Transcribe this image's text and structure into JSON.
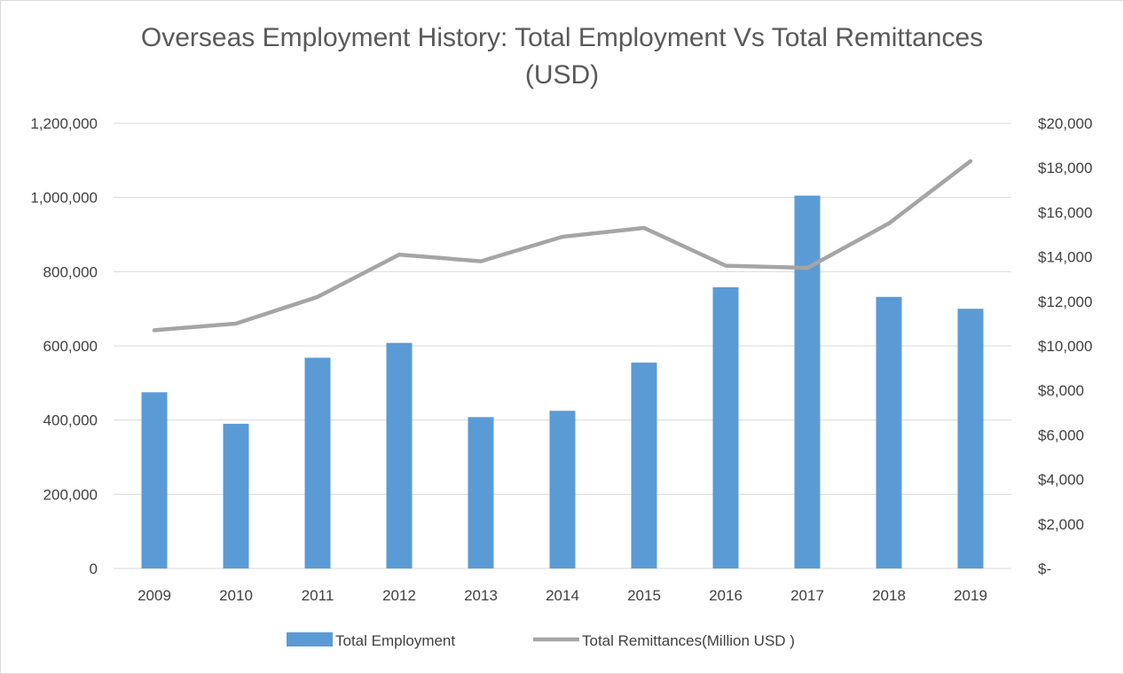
{
  "chart_data": {
    "type": "bar",
    "title": "Overseas Employment History: Total Employment Vs Total Remittances (USD)",
    "categories": [
      "2009",
      "2010",
      "2011",
      "2012",
      "2013",
      "2014",
      "2015",
      "2016",
      "2017",
      "2018",
      "2019"
    ],
    "series": [
      {
        "name": "Total Employment",
        "type": "bar",
        "axis": "left",
        "color": "#5b9bd5",
        "values": [
          475000,
          390000,
          568000,
          608000,
          408000,
          425000,
          555000,
          758000,
          1005000,
          732000,
          700000
        ]
      },
      {
        "name": "Total Remittances(Million USD )",
        "type": "line",
        "axis": "right",
        "color": "#a5a5a5",
        "values": [
          10700,
          11000,
          12200,
          14100,
          13800,
          14900,
          15300,
          13600,
          13500,
          15500,
          18300
        ]
      }
    ],
    "y_left": {
      "ylim": [
        0,
        1200000
      ],
      "ticks": [
        0,
        200000,
        400000,
        600000,
        800000,
        1000000,
        1200000
      ],
      "tick_labels": [
        "0",
        "200,000",
        "400,000",
        "600,000",
        "800,000",
        "1,000,000",
        "1,200,000"
      ]
    },
    "y_right": {
      "ylim": [
        0,
        20000
      ],
      "ticks": [
        0,
        2000,
        4000,
        6000,
        8000,
        10000,
        12000,
        14000,
        16000,
        18000,
        20000
      ],
      "tick_labels": [
        "$-",
        "$2,000",
        "$4,000",
        "$6,000",
        "$8,000",
        "$10,000",
        "$12,000",
        "$14,000",
        "$16,000",
        "$18,000",
        "$20,000"
      ]
    },
    "grid": true,
    "legend_position": "bottom",
    "colors": {
      "gridline": "#d9d9d9",
      "axis_text": "#404040",
      "title_text": "#595959"
    }
  }
}
